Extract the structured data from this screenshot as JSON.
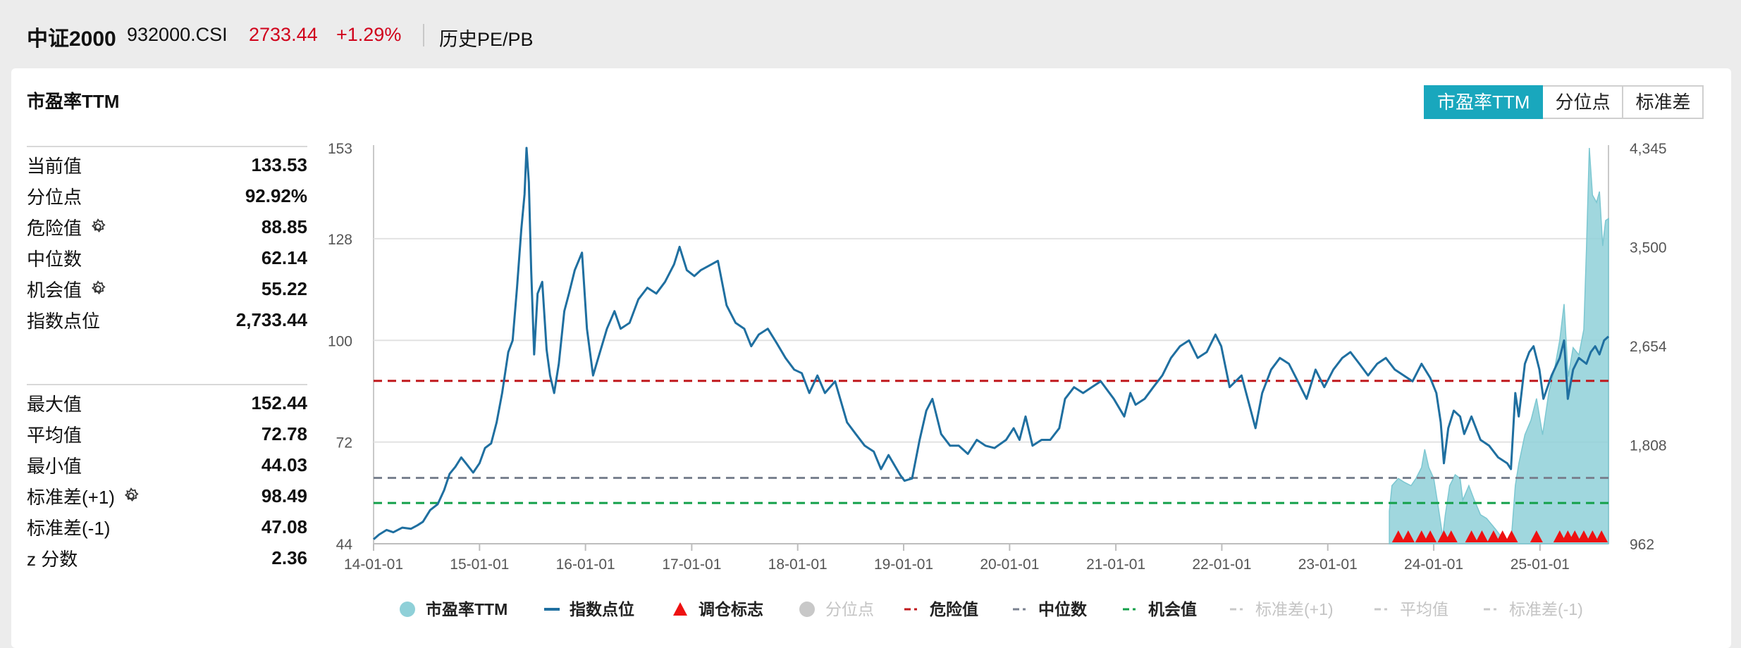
{
  "header": {
    "name": "中证2000",
    "code": "932000.CSI",
    "price": "2733.44",
    "change": "+1.29%",
    "page_link": "历史PE/PB"
  },
  "card": {
    "title": "市盈率TTM",
    "tabs": [
      "市盈率TTM",
      "分位点",
      "标准差"
    ],
    "active_tab": 0
  },
  "stats_top": [
    {
      "label": "当前值",
      "value": "133.53",
      "gear": false
    },
    {
      "label": "分位点",
      "value": "92.92%",
      "gear": false
    },
    {
      "label": "危险值",
      "value": "88.85",
      "gear": true
    },
    {
      "label": "中位数",
      "value": "62.14",
      "gear": false
    },
    {
      "label": "机会值",
      "value": "55.22",
      "gear": true
    },
    {
      "label": "指数点位",
      "value": "2,733.44",
      "gear": false
    }
  ],
  "stats_bottom": [
    {
      "label": "最大值",
      "value": "152.44",
      "gear": false
    },
    {
      "label": "平均值",
      "value": "72.78",
      "gear": false
    },
    {
      "label": "最小值",
      "value": "44.03",
      "gear": false
    },
    {
      "label": "标准差(+1)",
      "value": "98.49",
      "gear": true
    },
    {
      "label": "标准差(-1)",
      "value": "47.08",
      "gear": false
    },
    {
      "label": "z 分数",
      "value": "2.36",
      "gear": false
    }
  ],
  "colors": {
    "accent": "#19a7bd",
    "index_line": "#1f6fa0",
    "pe_area": "#8fd0d8",
    "danger": "#c0181c",
    "median": "#7a8290",
    "opportunity": "#13a04a",
    "signal": "#ee1111",
    "price_red": "#d0021b",
    "disabled": "#c8c8c8"
  },
  "chart_data": {
    "type": "line",
    "x_ticks": [
      "14-01-01",
      "15-01-01",
      "16-01-01",
      "17-01-01",
      "18-01-01",
      "19-01-01",
      "20-01-01",
      "21-01-01",
      "22-01-01",
      "23-01-01",
      "24-01-01",
      "25-01-01"
    ],
    "x_range": [
      "2014-01-01",
      "2025-08-25"
    ],
    "y_left_ticks": [
      "44",
      "72",
      "100",
      "128",
      "153"
    ],
    "y_left_range": [
      44,
      153
    ],
    "y_right_ticks": [
      "962",
      "1,808",
      "2,654",
      "3,500",
      "4,345"
    ],
    "y_right_range": [
      962,
      4345
    ],
    "reference_lines": [
      {
        "name": "危险值",
        "value": 88.85,
        "color": "#c0181c"
      },
      {
        "name": "中位数",
        "value": 62.14,
        "color": "#7a8290"
      },
      {
        "name": "机会值",
        "value": 55.22,
        "color": "#13a04a"
      }
    ],
    "series": [
      {
        "name": "市盈率TTM",
        "axis": "left",
        "kind": "area",
        "points": [
          [
            "2023-08-01",
            53
          ],
          [
            "2023-08-10",
            60
          ],
          [
            "2023-09-01",
            62
          ],
          [
            "2023-09-20",
            61
          ],
          [
            "2023-10-15",
            60
          ],
          [
            "2023-11-01",
            62
          ],
          [
            "2023-11-20",
            65
          ],
          [
            "2023-12-01",
            70
          ],
          [
            "2023-12-15",
            65
          ],
          [
            "2024-01-01",
            62
          ],
          [
            "2024-01-15",
            55
          ],
          [
            "2024-02-01",
            46
          ],
          [
            "2024-02-10",
            52
          ],
          [
            "2024-02-25",
            60
          ],
          [
            "2024-03-15",
            63
          ],
          [
            "2024-04-01",
            62
          ],
          [
            "2024-04-10",
            56
          ],
          [
            "2024-05-01",
            60
          ],
          [
            "2024-05-20",
            56
          ],
          [
            "2024-06-10",
            52
          ],
          [
            "2024-07-01",
            51
          ],
          [
            "2024-08-01",
            48
          ],
          [
            "2024-08-20",
            46
          ],
          [
            "2024-09-10",
            45
          ],
          [
            "2024-09-25",
            46
          ],
          [
            "2024-10-08",
            60
          ],
          [
            "2024-10-20",
            66
          ],
          [
            "2024-11-10",
            74
          ],
          [
            "2024-12-01",
            78
          ],
          [
            "2024-12-20",
            84
          ],
          [
            "2025-01-10",
            74
          ],
          [
            "2025-02-01",
            86
          ],
          [
            "2025-02-20",
            92
          ],
          [
            "2025-03-10",
            100
          ],
          [
            "2025-03-25",
            110
          ],
          [
            "2025-04-08",
            90
          ],
          [
            "2025-04-25",
            98
          ],
          [
            "2025-05-15",
            96
          ],
          [
            "2025-06-01",
            103
          ],
          [
            "2025-06-10",
            125
          ],
          [
            "2025-06-20",
            153
          ],
          [
            "2025-07-01",
            140
          ],
          [
            "2025-07-15",
            138
          ],
          [
            "2025-07-25",
            141
          ],
          [
            "2025-08-05",
            126
          ],
          [
            "2025-08-15",
            133
          ],
          [
            "2025-08-25",
            133.53
          ]
        ]
      },
      {
        "name": "指数点位",
        "axis": "right",
        "kind": "line",
        "points": [
          [
            "2014-01-01",
            1000
          ],
          [
            "2014-01-20",
            1040
          ],
          [
            "2014-02-15",
            1080
          ],
          [
            "2014-03-10",
            1060
          ],
          [
            "2014-04-10",
            1100
          ],
          [
            "2014-05-10",
            1090
          ],
          [
            "2014-06-01",
            1120
          ],
          [
            "2014-06-20",
            1150
          ],
          [
            "2014-07-15",
            1250
          ],
          [
            "2014-08-10",
            1300
          ],
          [
            "2014-09-01",
            1420
          ],
          [
            "2014-09-20",
            1560
          ],
          [
            "2014-10-10",
            1620
          ],
          [
            "2014-10-30",
            1700
          ],
          [
            "2014-11-15",
            1650
          ],
          [
            "2014-12-10",
            1570
          ],
          [
            "2015-01-01",
            1650
          ],
          [
            "2015-01-20",
            1780
          ],
          [
            "2015-02-10",
            1820
          ],
          [
            "2015-03-01",
            2000
          ],
          [
            "2015-03-20",
            2250
          ],
          [
            "2015-04-10",
            2600
          ],
          [
            "2015-04-25",
            2700
          ],
          [
            "2015-05-10",
            3150
          ],
          [
            "2015-05-25",
            3650
          ],
          [
            "2015-06-05",
            3950
          ],
          [
            "2015-06-12",
            4345
          ],
          [
            "2015-06-20",
            4050
          ],
          [
            "2015-06-28",
            3300
          ],
          [
            "2015-07-08",
            2580
          ],
          [
            "2015-07-20",
            3100
          ],
          [
            "2015-08-05",
            3200
          ],
          [
            "2015-08-20",
            2620
          ],
          [
            "2015-09-01",
            2400
          ],
          [
            "2015-09-15",
            2250
          ],
          [
            "2015-10-01",
            2500
          ],
          [
            "2015-10-20",
            2950
          ],
          [
            "2015-11-05",
            3100
          ],
          [
            "2015-11-25",
            3300
          ],
          [
            "2015-12-20",
            3450
          ],
          [
            "2016-01-06",
            2800
          ],
          [
            "2016-01-27",
            2400
          ],
          [
            "2016-02-20",
            2600
          ],
          [
            "2016-03-15",
            2800
          ],
          [
            "2016-04-10",
            2950
          ],
          [
            "2016-05-01",
            2800
          ],
          [
            "2016-06-01",
            2850
          ],
          [
            "2016-07-01",
            3050
          ],
          [
            "2016-08-01",
            3150
          ],
          [
            "2016-09-01",
            3100
          ],
          [
            "2016-10-01",
            3200
          ],
          [
            "2016-11-01",
            3350
          ],
          [
            "2016-11-20",
            3500
          ],
          [
            "2016-12-15",
            3300
          ],
          [
            "2017-01-10",
            3250
          ],
          [
            "2017-02-01",
            3300
          ],
          [
            "2017-03-10",
            3350
          ],
          [
            "2017-04-01",
            3380
          ],
          [
            "2017-05-01",
            3000
          ],
          [
            "2017-06-01",
            2850
          ],
          [
            "2017-07-01",
            2800
          ],
          [
            "2017-07-25",
            2650
          ],
          [
            "2017-08-20",
            2750
          ],
          [
            "2017-09-20",
            2800
          ],
          [
            "2017-10-20",
            2680
          ],
          [
            "2017-11-20",
            2550
          ],
          [
            "2017-12-20",
            2450
          ],
          [
            "2018-01-15",
            2420
          ],
          [
            "2018-02-10",
            2250
          ],
          [
            "2018-03-10",
            2400
          ],
          [
            "2018-04-05",
            2250
          ],
          [
            "2018-05-10",
            2350
          ],
          [
            "2018-06-20",
            2000
          ],
          [
            "2018-07-20",
            1900
          ],
          [
            "2018-08-20",
            1800
          ],
          [
            "2018-09-20",
            1750
          ],
          [
            "2018-10-15",
            1600
          ],
          [
            "2018-11-10",
            1720
          ],
          [
            "2018-12-20",
            1550
          ],
          [
            "2019-01-04",
            1500
          ],
          [
            "2019-01-30",
            1520
          ],
          [
            "2019-02-25",
            1850
          ],
          [
            "2019-03-20",
            2100
          ],
          [
            "2019-04-10",
            2200
          ],
          [
            "2019-05-10",
            1900
          ],
          [
            "2019-06-10",
            1800
          ],
          [
            "2019-07-10",
            1800
          ],
          [
            "2019-08-10",
            1730
          ],
          [
            "2019-09-10",
            1850
          ],
          [
            "2019-10-10",
            1800
          ],
          [
            "2019-11-10",
            1780
          ],
          [
            "2019-12-20",
            1850
          ],
          [
            "2020-01-15",
            1950
          ],
          [
            "2020-02-04",
            1850
          ],
          [
            "2020-02-25",
            2050
          ],
          [
            "2020-03-20",
            1800
          ],
          [
            "2020-04-20",
            1850
          ],
          [
            "2020-05-20",
            1850
          ],
          [
            "2020-06-20",
            1950
          ],
          [
            "2020-07-10",
            2200
          ],
          [
            "2020-08-10",
            2300
          ],
          [
            "2020-09-10",
            2250
          ],
          [
            "2020-10-10",
            2300
          ],
          [
            "2020-11-10",
            2350
          ],
          [
            "2020-12-25",
            2200
          ],
          [
            "2021-01-30",
            2050
          ],
          [
            "2021-02-20",
            2250
          ],
          [
            "2021-03-10",
            2150
          ],
          [
            "2021-04-10",
            2200
          ],
          [
            "2021-05-10",
            2300
          ],
          [
            "2021-06-10",
            2400
          ],
          [
            "2021-07-10",
            2550
          ],
          [
            "2021-08-10",
            2650
          ],
          [
            "2021-09-10",
            2700
          ],
          [
            "2021-10-10",
            2550
          ],
          [
            "2021-11-10",
            2600
          ],
          [
            "2021-12-10",
            2750
          ],
          [
            "2021-12-30",
            2650
          ],
          [
            "2022-01-28",
            2300
          ],
          [
            "2022-03-10",
            2400
          ],
          [
            "2022-04-27",
            1950
          ],
          [
            "2022-05-20",
            2250
          ],
          [
            "2022-06-20",
            2450
          ],
          [
            "2022-07-20",
            2550
          ],
          [
            "2022-08-20",
            2500
          ],
          [
            "2022-09-20",
            2350
          ],
          [
            "2022-10-20",
            2200
          ],
          [
            "2022-11-20",
            2450
          ],
          [
            "2022-12-20",
            2300
          ],
          [
            "2023-01-20",
            2450
          ],
          [
            "2023-02-20",
            2550
          ],
          [
            "2023-03-20",
            2600
          ],
          [
            "2023-04-20",
            2500
          ],
          [
            "2023-05-20",
            2400
          ],
          [
            "2023-06-20",
            2500
          ],
          [
            "2023-07-20",
            2550
          ],
          [
            "2023-08-20",
            2450
          ],
          [
            "2023-09-20",
            2400
          ],
          [
            "2023-10-20",
            2350
          ],
          [
            "2023-11-20",
            2500
          ],
          [
            "2023-12-20",
            2380
          ],
          [
            "2024-01-10",
            2250
          ],
          [
            "2024-01-25",
            2000
          ],
          [
            "2024-02-05",
            1650
          ],
          [
            "2024-02-20",
            1950
          ],
          [
            "2024-03-10",
            2100
          ],
          [
            "2024-04-01",
            2050
          ],
          [
            "2024-04-15",
            1900
          ],
          [
            "2024-05-10",
            2050
          ],
          [
            "2024-06-10",
            1850
          ],
          [
            "2024-07-10",
            1800
          ],
          [
            "2024-08-10",
            1700
          ],
          [
            "2024-09-10",
            1650
          ],
          [
            "2024-09-23",
            1600
          ],
          [
            "2024-10-08",
            2250
          ],
          [
            "2024-10-20",
            2050
          ],
          [
            "2024-11-10",
            2500
          ],
          [
            "2024-11-25",
            2600
          ],
          [
            "2024-12-10",
            2650
          ],
          [
            "2024-12-30",
            2450
          ],
          [
            "2025-01-13",
            2200
          ],
          [
            "2025-02-10",
            2400
          ],
          [
            "2025-03-10",
            2550
          ],
          [
            "2025-03-25",
            2700
          ],
          [
            "2025-04-07",
            2200
          ],
          [
            "2025-04-25",
            2450
          ],
          [
            "2025-05-15",
            2550
          ],
          [
            "2025-06-10",
            2500
          ],
          [
            "2025-06-25",
            2600
          ],
          [
            "2025-07-10",
            2650
          ],
          [
            "2025-07-25",
            2580
          ],
          [
            "2025-08-10",
            2700
          ],
          [
            "2025-08-25",
            2733.44
          ]
        ]
      }
    ],
    "signals": [
      "2023-09-01",
      "2023-10-05",
      "2023-11-20",
      "2023-12-20",
      "2024-02-05",
      "2024-03-01",
      "2024-05-10",
      "2024-06-15",
      "2024-07-25",
      "2024-08-25",
      "2024-09-25",
      "2024-12-20",
      "2025-03-10",
      "2025-04-07",
      "2025-05-01",
      "2025-06-01",
      "2025-07-01",
      "2025-08-01"
    ],
    "legend": [
      {
        "label": "市盈率TTM",
        "marker": "circle",
        "color": "#8fd0d8",
        "enabled": true
      },
      {
        "label": "指数点位",
        "marker": "line",
        "color": "#1f6fa0",
        "enabled": true
      },
      {
        "label": "调仓标志",
        "marker": "triangle",
        "color": "#ee1111",
        "enabled": true
      },
      {
        "label": "分位点",
        "marker": "circle",
        "color": "#c8c8c8",
        "enabled": false
      },
      {
        "label": "危险值",
        "marker": "dash",
        "color": "#c0181c",
        "enabled": true
      },
      {
        "label": "中位数",
        "marker": "dash",
        "color": "#7a8290",
        "enabled": true
      },
      {
        "label": "机会值",
        "marker": "dash",
        "color": "#13a04a",
        "enabled": true
      },
      {
        "label": "标准差(+1)",
        "marker": "dash",
        "color": "#c8c8c8",
        "enabled": false
      },
      {
        "label": "平均值",
        "marker": "dash",
        "color": "#c8c8c8",
        "enabled": false
      },
      {
        "label": "标准差(-1)",
        "marker": "dash",
        "color": "#c8c8c8",
        "enabled": false
      }
    ],
    "legend_position": "bottom",
    "grid": true
  }
}
